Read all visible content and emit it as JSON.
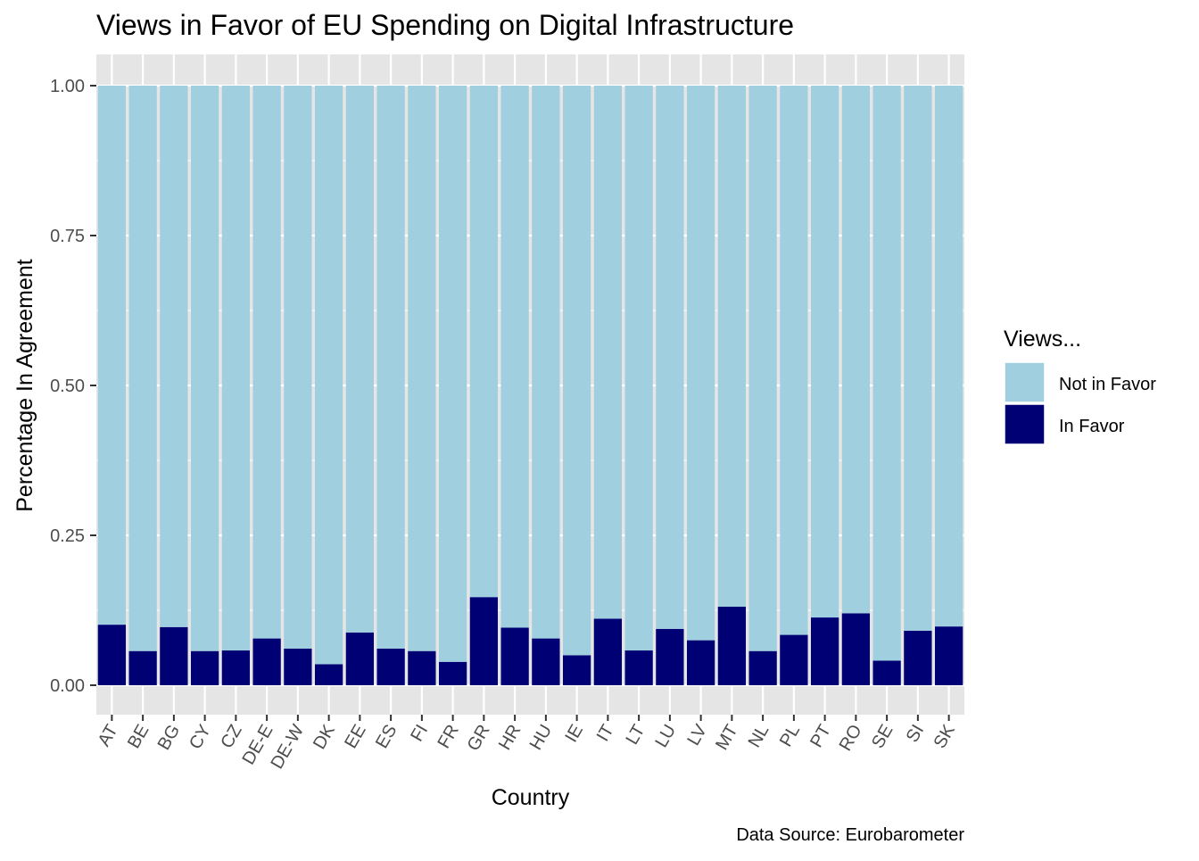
{
  "chart_data": {
    "type": "bar",
    "stacked": true,
    "title": "Views in Favor of EU Spending on Digital Infrastructure",
    "xlabel": "Country",
    "ylabel": "Percentage In Agreement",
    "caption": "Data Source: Eurobarometer",
    "ylim": [
      0,
      1.05
    ],
    "yticks": [
      "0.00",
      "0.25",
      "0.50",
      "0.75",
      "1.00"
    ],
    "ytick_values": [
      0,
      0.25,
      0.5,
      0.75,
      1.0
    ],
    "categories": [
      "AT",
      "BE",
      "BG",
      "CY",
      "CZ",
      "DE-E",
      "DE-W",
      "DK",
      "EE",
      "ES",
      "FI",
      "FR",
      "GR",
      "HR",
      "HU",
      "IE",
      "IT",
      "LT",
      "LU",
      "LV",
      "MT",
      "NL",
      "PL",
      "PT",
      "RO",
      "SE",
      "SI",
      "SK"
    ],
    "series": [
      {
        "name": "In Favor",
        "color": "#000075",
        "values": [
          0.101,
          0.057,
          0.097,
          0.057,
          0.058,
          0.078,
          0.061,
          0.035,
          0.088,
          0.061,
          0.057,
          0.039,
          0.147,
          0.096,
          0.078,
          0.05,
          0.111,
          0.058,
          0.094,
          0.075,
          0.131,
          0.057,
          0.084,
          0.113,
          0.12,
          0.041,
          0.091,
          0.098
        ]
      },
      {
        "name": "Not in Favor",
        "color": "#a0cfe0",
        "values": [
          0.899,
          0.943,
          0.903,
          0.943,
          0.942,
          0.922,
          0.939,
          0.965,
          0.912,
          0.939,
          0.943,
          0.961,
          0.853,
          0.904,
          0.922,
          0.95,
          0.889,
          0.942,
          0.906,
          0.925,
          0.869,
          0.943,
          0.916,
          0.887,
          0.88,
          0.959,
          0.909,
          0.902
        ]
      }
    ],
    "legend": {
      "title": "Views...",
      "position": "right",
      "items": [
        {
          "label": "Not in Favor",
          "color": "#a0cfe0"
        },
        {
          "label": "In Favor",
          "color": "#000075"
        }
      ]
    },
    "grid": true,
    "panel_color": "#e5e5e5"
  }
}
